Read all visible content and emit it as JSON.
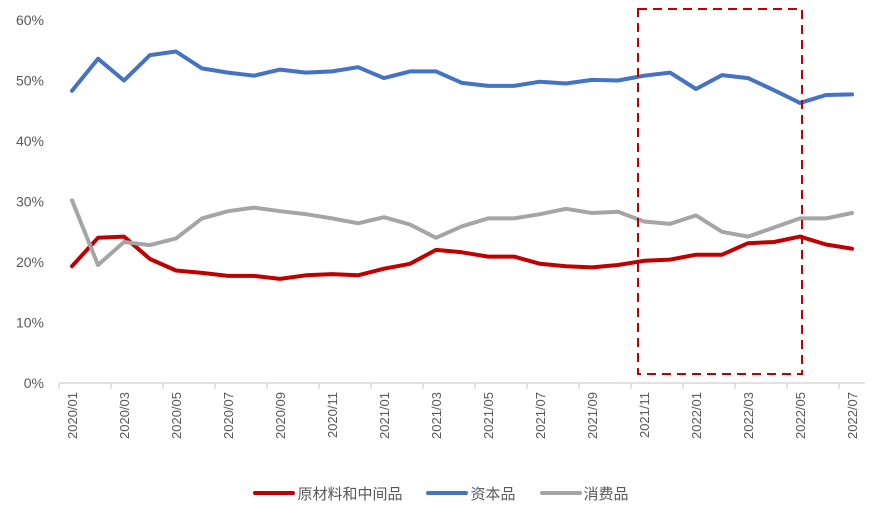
{
  "chart_data": {
    "type": "line",
    "title": "",
    "xlabel": "",
    "ylabel": "",
    "ylim": [
      0,
      60
    ],
    "yticks": [
      "0%",
      "10%",
      "20%",
      "30%",
      "40%",
      "50%",
      "60%"
    ],
    "x": [
      "2020/01",
      "2020/02",
      "2020/03",
      "2020/04",
      "2020/05",
      "2020/06",
      "2020/07",
      "2020/08",
      "2020/09",
      "2020/10",
      "2020/11",
      "2020/12",
      "2021/01",
      "2021/02",
      "2021/03",
      "2021/04",
      "2021/05",
      "2021/06",
      "2021/07",
      "2021/08",
      "2021/09",
      "2021/10",
      "2021/11",
      "2021/12",
      "2022/01",
      "2022/02",
      "2022/03",
      "2022/04",
      "2022/05",
      "2022/06",
      "2022/07"
    ],
    "xtick_labels": [
      "2020/01",
      "2020/03",
      "2020/05",
      "2020/07",
      "2020/09",
      "2020/11",
      "2021/01",
      "2021/03",
      "2021/05",
      "2021/07",
      "2021/09",
      "2021/11",
      "2022/01",
      "2022/03",
      "2022/05",
      "2022/07"
    ],
    "grid": false,
    "legend_position": "bottom",
    "series": [
      {
        "name": "原材料和中间品",
        "color": "#C00000",
        "values": [
          19.3,
          24.0,
          24.2,
          20.5,
          18.6,
          18.2,
          17.7,
          17.7,
          17.2,
          17.8,
          18.0,
          17.8,
          18.9,
          19.7,
          22.0,
          21.6,
          20.9,
          20.9,
          19.7,
          19.3,
          19.1,
          19.5,
          20.2,
          20.4,
          21.2,
          21.2,
          23.1,
          23.3,
          24.2,
          22.9,
          22.2
        ]
      },
      {
        "name": "资本品",
        "color": "#4472C4",
        "values": [
          48.3,
          53.6,
          50.0,
          54.2,
          54.8,
          52.0,
          51.3,
          50.8,
          51.8,
          51.3,
          51.5,
          52.2,
          50.4,
          51.5,
          51.5,
          49.6,
          49.1,
          49.1,
          49.8,
          49.5,
          50.1,
          50.0,
          50.8,
          51.3,
          48.6,
          50.9,
          50.4,
          48.4,
          46.3,
          47.6,
          47.7
        ]
      },
      {
        "name": "消费品",
        "color": "#A5A5A5",
        "values": [
          30.2,
          19.5,
          23.3,
          22.8,
          23.9,
          27.2,
          28.4,
          29.0,
          28.4,
          27.9,
          27.2,
          26.4,
          27.4,
          26.2,
          24.0,
          25.9,
          27.2,
          27.2,
          27.9,
          28.8,
          28.1,
          28.3,
          26.7,
          26.3,
          27.7,
          25.0,
          24.2,
          25.7,
          27.2,
          27.2,
          28.1
        ]
      }
    ],
    "annotations": [
      {
        "type": "dashed-rect",
        "color": "#C00000",
        "x_from": "2021/11",
        "x_to": "2022/05",
        "description": "highlight box"
      }
    ]
  },
  "legend": {
    "items": [
      {
        "label": "原材料和中间品",
        "color": "#C00000"
      },
      {
        "label": "资本品",
        "color": "#4472C4"
      },
      {
        "label": "消费品",
        "color": "#A5A5A5"
      }
    ]
  }
}
